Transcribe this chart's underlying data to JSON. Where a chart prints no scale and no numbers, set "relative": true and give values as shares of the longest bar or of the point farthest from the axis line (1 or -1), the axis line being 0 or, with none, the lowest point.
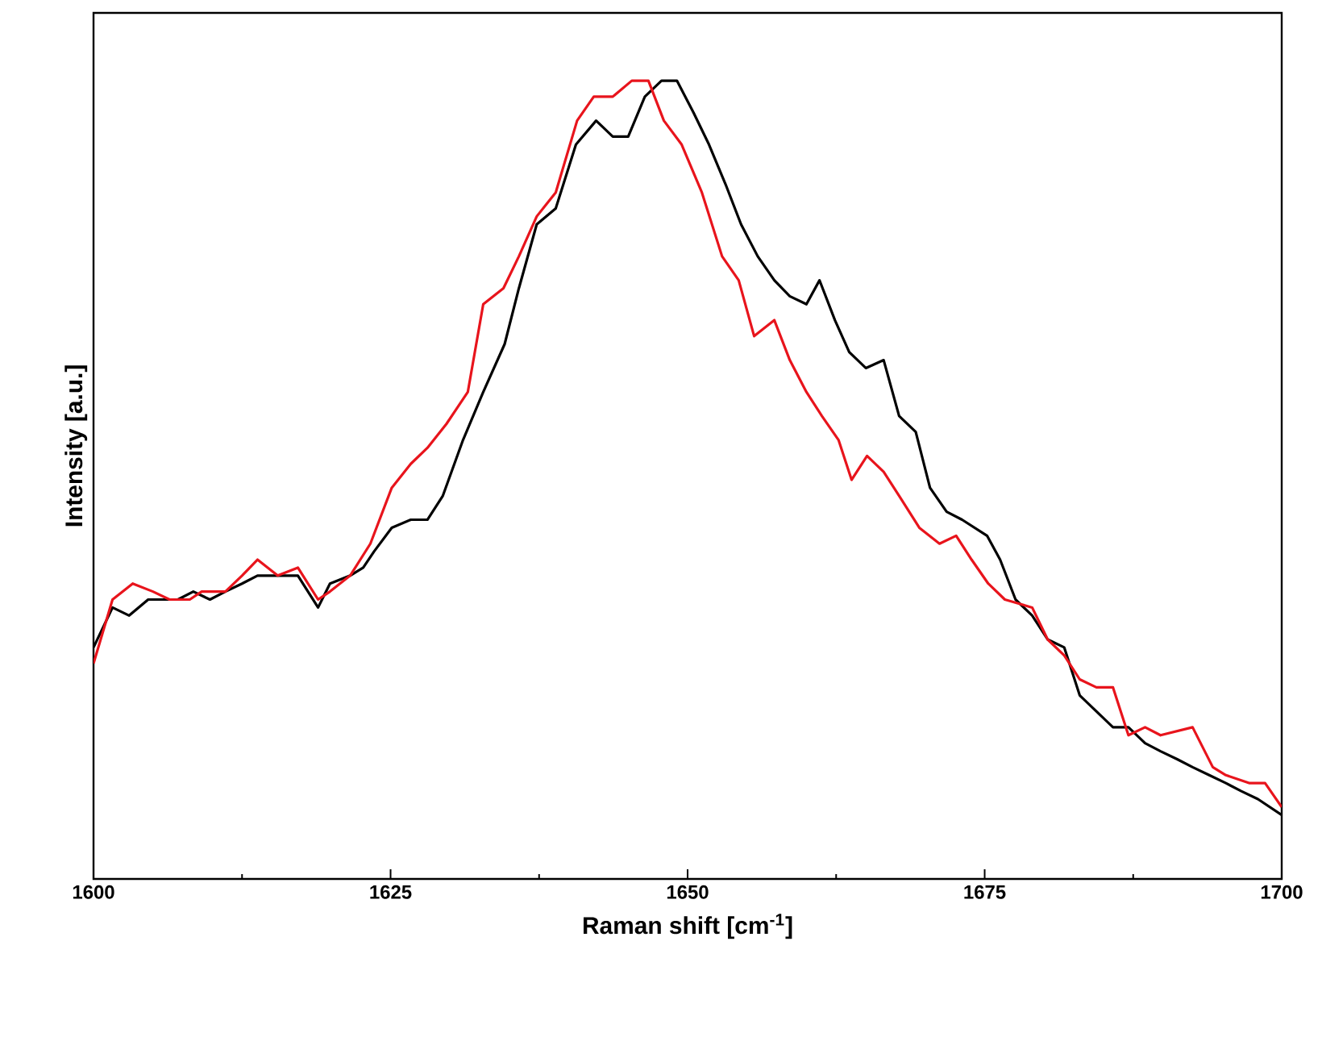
{
  "chart_data": {
    "type": "line",
    "xlabel": "Raman shift [cm$^{-1}$]",
    "ylabel": "Intensity [a.u.]",
    "relative": true,
    "xlim": [
      1600,
      1700
    ],
    "xticks": [
      1600,
      1625,
      1650,
      1675,
      1700
    ],
    "line_style": "solid",
    "series": [
      {
        "color": "#000000",
        "x": [
          1600.0,
          1601.6,
          1603.0,
          1604.6,
          1605.7,
          1607.1,
          1608.4,
          1609.8,
          1611.1,
          1612.5,
          1613.8,
          1615.9,
          1617.2,
          1618.9,
          1619.9,
          1621.6,
          1622.7,
          1623.6,
          1625.1,
          1626.7,
          1628.1,
          1629.4,
          1631.1,
          1632.8,
          1634.6,
          1635.8,
          1637.3,
          1638.9,
          1640.6,
          1642.3,
          1643.7,
          1645.0,
          1646.4,
          1647.8,
          1649.1,
          1650.5,
          1651.8,
          1653.2,
          1654.5,
          1655.9,
          1657.3,
          1658.6,
          1660.0,
          1661.1,
          1662.4,
          1663.6,
          1665.0,
          1666.5,
          1667.8,
          1669.2,
          1670.4,
          1671.8,
          1673.1,
          1675.2,
          1676.3,
          1677.6,
          1679.0,
          1680.3,
          1681.7,
          1683.0,
          1684.4,
          1685.8,
          1687.1,
          1688.5,
          1689.8,
          1691.2,
          1692.5,
          1693.9,
          1695.3,
          1696.6,
          1698.0,
          1700.0
        ],
        "values": [
          0.29,
          0.34,
          0.33,
          0.35,
          0.35,
          0.35,
          0.36,
          0.35,
          0.36,
          0.37,
          0.38,
          0.38,
          0.38,
          0.34,
          0.37,
          0.38,
          0.39,
          0.41,
          0.44,
          0.45,
          0.45,
          0.48,
          0.55,
          0.61,
          0.67,
          0.74,
          0.82,
          0.84,
          0.92,
          0.95,
          0.93,
          0.93,
          0.98,
          1.0,
          1.0,
          0.96,
          0.92,
          0.87,
          0.82,
          0.78,
          0.75,
          0.73,
          0.72,
          0.75,
          0.7,
          0.66,
          0.64,
          0.65,
          0.58,
          0.56,
          0.49,
          0.46,
          0.45,
          0.43,
          0.4,
          0.35,
          0.33,
          0.3,
          0.29,
          0.23,
          0.21,
          0.19,
          0.19,
          0.17,
          0.16,
          0.15,
          0.14,
          0.13,
          0.12,
          0.11,
          0.1,
          0.08
        ]
      },
      {
        "color": "#e8141c",
        "x": [
          1600.0,
          1601.6,
          1603.3,
          1605.0,
          1606.4,
          1608.1,
          1609.1,
          1611.1,
          1612.5,
          1613.8,
          1615.5,
          1617.2,
          1618.9,
          1619.9,
          1621.6,
          1623.3,
          1625.1,
          1626.7,
          1628.1,
          1629.7,
          1631.5,
          1632.8,
          1634.5,
          1635.8,
          1637.3,
          1638.9,
          1640.7,
          1642.1,
          1643.7,
          1645.3,
          1646.7,
          1648.0,
          1649.5,
          1651.2,
          1652.9,
          1654.3,
          1655.6,
          1657.3,
          1658.6,
          1660.0,
          1661.3,
          1662.7,
          1663.8,
          1665.1,
          1666.5,
          1667.8,
          1669.5,
          1671.2,
          1672.6,
          1673.9,
          1675.3,
          1676.7,
          1679.0,
          1680.3,
          1681.7,
          1683.0,
          1684.4,
          1685.8,
          1687.1,
          1688.5,
          1689.8,
          1692.5,
          1694.2,
          1695.3,
          1697.3,
          1698.6,
          1700.0
        ],
        "values": [
          0.27,
          0.35,
          0.37,
          0.36,
          0.35,
          0.35,
          0.36,
          0.36,
          0.38,
          0.4,
          0.38,
          0.39,
          0.35,
          0.36,
          0.38,
          0.42,
          0.49,
          0.52,
          0.54,
          0.57,
          0.61,
          0.72,
          0.74,
          0.78,
          0.83,
          0.86,
          0.95,
          0.98,
          0.98,
          1.0,
          1.0,
          0.95,
          0.92,
          0.86,
          0.78,
          0.75,
          0.68,
          0.7,
          0.65,
          0.61,
          0.58,
          0.55,
          0.5,
          0.53,
          0.51,
          0.48,
          0.44,
          0.42,
          0.43,
          0.4,
          0.37,
          0.35,
          0.34,
          0.3,
          0.28,
          0.25,
          0.24,
          0.24,
          0.18,
          0.19,
          0.18,
          0.19,
          0.14,
          0.13,
          0.12,
          0.12,
          0.09
        ]
      }
    ]
  }
}
